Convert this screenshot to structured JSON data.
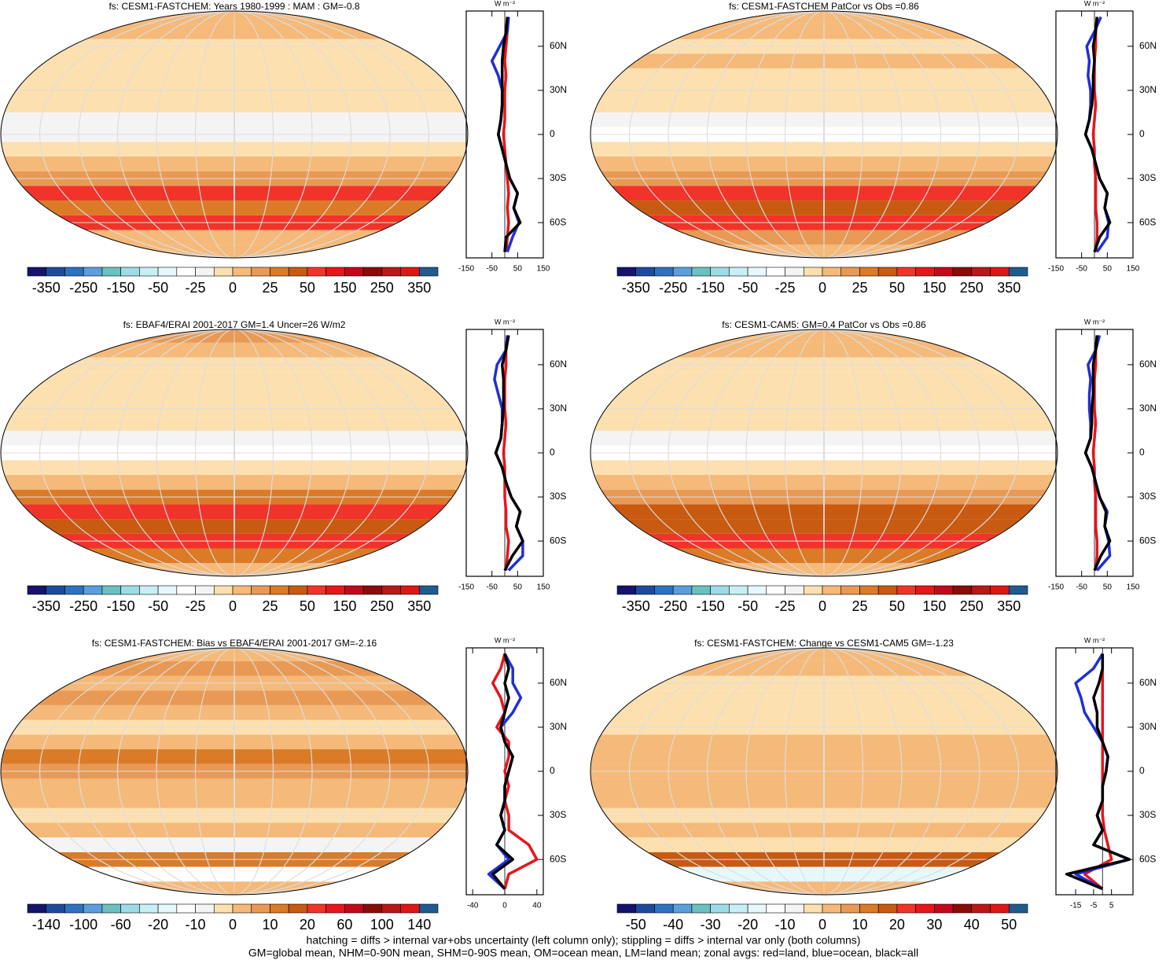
{
  "chart_data": [
    {
      "type": "map",
      "title": "fs: CESM1-FASTCHEM: Years 1980-1999 : MAM : GM=-0.8",
      "colorbar": {
        "colors": [
          "#14146e",
          "#1d4a9a",
          "#2c72c0",
          "#5a9fdc",
          "#6cc0c0",
          "#9edbe6",
          "#c8eff5",
          "#e6f8fb",
          "#ffffff",
          "#f4f4f4",
          "#fde0b0",
          "#f5b979",
          "#e89a55",
          "#db7b28",
          "#c85a12",
          "#f2332a",
          "#e8151b",
          "#c4071a",
          "#8b0a0a",
          "#b81818",
          "#e01616",
          "#1f5b8f"
        ],
        "labels": [
          -350,
          -250,
          -150,
          -50,
          -25,
          0,
          25,
          50,
          150,
          250,
          350
        ]
      },
      "zonal": {
        "type": "line",
        "axis_label": "W m⁻²",
        "y": [
          -80,
          -70,
          -60,
          -50,
          -40,
          -30,
          -20,
          -10,
          0,
          10,
          20,
          30,
          40,
          50,
          60,
          70,
          80
        ],
        "ylim": [
          -84,
          84
        ],
        "yticks": [
          {
            "value": -60,
            "label": "60S"
          },
          {
            "value": -30,
            "label": "30S"
          },
          {
            "value": 0,
            "label": "0"
          },
          {
            "value": 30,
            "label": "30N"
          },
          {
            "value": 60,
            "label": "60N"
          }
        ],
        "xlim": [
          -150,
          150
        ],
        "xticks": [
          -150,
          -50,
          50,
          150
        ],
        "series": [
          {
            "color": "#e8141b",
            "values": [
              5,
              10,
              15,
              10,
              15,
              10,
              5,
              0,
              -5,
              0,
              0,
              0,
              5,
              0,
              5,
              10,
              10
            ]
          },
          {
            "color": "#1f2fd6",
            "values": [
              10,
              30,
              55,
              35,
              50,
              20,
              5,
              -10,
              -25,
              -15,
              -10,
              -10,
              -25,
              -50,
              -20,
              10,
              15
            ]
          },
          {
            "color": "#000000",
            "values": [
              0,
              5,
              60,
              35,
              50,
              20,
              5,
              -10,
              -25,
              -15,
              -10,
              -10,
              -10,
              -10,
              -5,
              5,
              10
            ]
          }
        ]
      }
    },
    {
      "type": "map",
      "title": "fs: CESM1-FASTCHEM PatCor vs Obs =0.86",
      "colorbar": {
        "colors": [
          "#14146e",
          "#1d4a9a",
          "#2c72c0",
          "#5a9fdc",
          "#6cc0c0",
          "#9edbe6",
          "#c8eff5",
          "#e6f8fb",
          "#ffffff",
          "#f4f4f4",
          "#fde0b0",
          "#f5b979",
          "#e89a55",
          "#db7b28",
          "#c85a12",
          "#f2332a",
          "#e8151b",
          "#c4071a",
          "#8b0a0a",
          "#b81818",
          "#e01616",
          "#1f5b8f"
        ],
        "labels": [
          -350,
          -250,
          -150,
          -50,
          -25,
          0,
          25,
          50,
          150,
          250,
          350
        ]
      },
      "zonal": {
        "type": "line",
        "axis_label": "W m⁻²",
        "y": [
          -80,
          -70,
          -60,
          -50,
          -40,
          -30,
          -20,
          -10,
          0,
          10,
          20,
          30,
          40,
          50,
          60,
          70,
          80
        ],
        "ylim": [
          -84,
          84
        ],
        "yticks": [
          {
            "value": -60,
            "label": "60S"
          },
          {
            "value": -30,
            "label": "30S"
          },
          {
            "value": 0,
            "label": "0"
          },
          {
            "value": 30,
            "label": "30N"
          },
          {
            "value": 60,
            "label": "60N"
          }
        ],
        "xlim": [
          -150,
          150
        ],
        "xticks": [
          -150,
          -50,
          50,
          150
        ],
        "series": [
          {
            "color": "#e8141b",
            "values": [
              5,
              10,
              10,
              5,
              5,
              5,
              0,
              0,
              -5,
              0,
              5,
              0,
              0,
              0,
              5,
              5,
              10
            ]
          },
          {
            "color": "#1f2fd6",
            "values": [
              10,
              50,
              55,
              40,
              50,
              20,
              5,
              -10,
              -35,
              -20,
              -15,
              -15,
              -25,
              -20,
              -30,
              0,
              25
            ]
          },
          {
            "color": "#000000",
            "values": [
              0,
              20,
              60,
              40,
              50,
              20,
              5,
              -10,
              -35,
              -20,
              -10,
              -5,
              -5,
              0,
              -5,
              5,
              10
            ]
          }
        ]
      }
    },
    {
      "type": "map",
      "title": "fs: EBAF4/ERAI 2001-2017 GM=1.4 Uncer=26 W/m2",
      "colorbar": {
        "colors": [
          "#14146e",
          "#1d4a9a",
          "#2c72c0",
          "#5a9fdc",
          "#6cc0c0",
          "#9edbe6",
          "#c8eff5",
          "#e6f8fb",
          "#ffffff",
          "#f4f4f4",
          "#fde0b0",
          "#f5b979",
          "#e89a55",
          "#db7b28",
          "#c85a12",
          "#f2332a",
          "#e8151b",
          "#c4071a",
          "#8b0a0a",
          "#b81818",
          "#e01616",
          "#1f5b8f"
        ],
        "labels": [
          -350,
          -250,
          -150,
          -50,
          -25,
          0,
          25,
          50,
          150,
          250,
          350
        ]
      },
      "zonal": {
        "type": "line",
        "axis_label": "W m⁻²",
        "y": [
          -80,
          -70,
          -60,
          -50,
          -40,
          -30,
          -20,
          -10,
          0,
          10,
          20,
          30,
          40,
          50,
          60,
          70,
          80
        ],
        "ylim": [
          -84,
          84
        ],
        "yticks": [
          {
            "value": -60,
            "label": "60S"
          },
          {
            "value": -30,
            "label": "30S"
          },
          {
            "value": 0,
            "label": "0"
          },
          {
            "value": 30,
            "label": "30N"
          },
          {
            "value": 60,
            "label": "60N"
          }
        ],
        "xlim": [
          -150,
          150
        ],
        "xticks": [
          -150,
          -50,
          50,
          150
        ],
        "series": [
          {
            "color": "#e8141b",
            "values": [
              5,
              10,
              15,
              5,
              5,
              0,
              0,
              0,
              -5,
              0,
              5,
              0,
              0,
              0,
              5,
              5,
              10
            ]
          },
          {
            "color": "#1f2fd6",
            "values": [
              15,
              70,
              70,
              45,
              60,
              25,
              5,
              -10,
              -35,
              -15,
              -10,
              -10,
              -25,
              -40,
              -30,
              5,
              10
            ]
          },
          {
            "color": "#000000",
            "values": [
              0,
              30,
              70,
              45,
              60,
              25,
              5,
              -10,
              -35,
              -15,
              -10,
              -5,
              -5,
              -5,
              -10,
              5,
              15
            ]
          }
        ]
      }
    },
    {
      "type": "map",
      "title": "fs: CESM1-CAM5: GM=0.4 PatCor vs Obs =0.86",
      "colorbar": {
        "colors": [
          "#14146e",
          "#1d4a9a",
          "#2c72c0",
          "#5a9fdc",
          "#6cc0c0",
          "#9edbe6",
          "#c8eff5",
          "#e6f8fb",
          "#ffffff",
          "#f4f4f4",
          "#fde0b0",
          "#f5b979",
          "#e89a55",
          "#db7b28",
          "#c85a12",
          "#f2332a",
          "#e8151b",
          "#c4071a",
          "#8b0a0a",
          "#b81818",
          "#e01616",
          "#1f5b8f"
        ],
        "labels": [
          -350,
          -250,
          -150,
          -50,
          -25,
          0,
          25,
          50,
          150,
          250,
          350
        ]
      },
      "zonal": {
        "type": "line",
        "axis_label": "W m⁻²",
        "y": [
          -80,
          -70,
          -60,
          -50,
          -40,
          -30,
          -20,
          -10,
          0,
          10,
          20,
          30,
          40,
          50,
          60,
          70,
          80
        ],
        "ylim": [
          -84,
          84
        ],
        "yticks": [
          {
            "value": -60,
            "label": "60S"
          },
          {
            "value": -30,
            "label": "30S"
          },
          {
            "value": 0,
            "label": "0"
          },
          {
            "value": 30,
            "label": "30N"
          },
          {
            "value": 60,
            "label": "60N"
          }
        ],
        "xlim": [
          -150,
          150
        ],
        "xticks": [
          -150,
          -50,
          50,
          150
        ],
        "series": [
          {
            "color": "#e8141b",
            "values": [
              5,
              10,
              10,
              5,
              5,
              5,
              0,
              0,
              -5,
              0,
              5,
              0,
              0,
              0,
              5,
              5,
              10
            ]
          },
          {
            "color": "#1f2fd6",
            "values": [
              10,
              60,
              55,
              40,
              50,
              20,
              5,
              -10,
              -35,
              -15,
              -15,
              -20,
              -20,
              -15,
              -25,
              5,
              20
            ]
          },
          {
            "color": "#000000",
            "values": [
              0,
              25,
              60,
              40,
              45,
              20,
              5,
              -10,
              -35,
              -15,
              -10,
              -10,
              -5,
              -5,
              -5,
              5,
              10
            ]
          }
        ]
      }
    },
    {
      "type": "map",
      "title": "fs: CESM1-FASTCHEM: Bias vs EBAF4/ERAI 2001-2017 GM=-2.16",
      "colorbar": {
        "colors": [
          "#14146e",
          "#1d4a9a",
          "#2c72c0",
          "#5a9fdc",
          "#6cc0c0",
          "#9edbe6",
          "#c8eff5",
          "#e6f8fb",
          "#ffffff",
          "#f4f4f4",
          "#fde0b0",
          "#f5b979",
          "#e89a55",
          "#db7b28",
          "#c85a12",
          "#f2332a",
          "#e8151b",
          "#c4071a",
          "#8b0a0a",
          "#b81818",
          "#e01616",
          "#1f5b8f"
        ],
        "labels": [
          -140,
          -100,
          -60,
          -20,
          -10,
          0,
          10,
          20,
          60,
          100,
          140
        ]
      },
      "zonal": {
        "type": "line",
        "axis_label": "W m⁻²",
        "y": [
          -80,
          -70,
          -60,
          -50,
          -40,
          -30,
          -20,
          -10,
          0,
          10,
          20,
          30,
          40,
          50,
          60,
          70,
          80
        ],
        "ylim": [
          -84,
          84
        ],
        "yticks": [
          {
            "value": -60,
            "label": "60S"
          },
          {
            "value": -30,
            "label": "30S"
          },
          {
            "value": 0,
            "label": "0"
          },
          {
            "value": 30,
            "label": "30N"
          },
          {
            "value": 60,
            "label": "60N"
          }
        ],
        "xlim": [
          -48,
          48
        ],
        "xticks": [
          -40,
          0,
          40
        ],
        "series": [
          {
            "color": "#e8141b",
            "values": [
              0,
              5,
              40,
              30,
              5,
              5,
              0,
              5,
              0,
              5,
              5,
              -10,
              0,
              -5,
              -15,
              -5,
              0
            ]
          },
          {
            "color": "#1f2fd6",
            "values": [
              0,
              -20,
              5,
              -10,
              0,
              -5,
              0,
              0,
              5,
              10,
              0,
              -5,
              10,
              20,
              10,
              10,
              0
            ]
          },
          {
            "color": "#000000",
            "values": [
              0,
              -15,
              10,
              -10,
              0,
              -5,
              0,
              0,
              5,
              10,
              0,
              -5,
              0,
              5,
              0,
              5,
              0
            ]
          }
        ]
      }
    },
    {
      "type": "map",
      "title": "fs: CESM1-FASTCHEM: Change vs CESM1-CAM5 GM=-1.23",
      "colorbar": {
        "colors": [
          "#14146e",
          "#1d4a9a",
          "#2c72c0",
          "#5a9fdc",
          "#6cc0c0",
          "#9edbe6",
          "#c8eff5",
          "#e6f8fb",
          "#ffffff",
          "#f4f4f4",
          "#fde0b0",
          "#f5b979",
          "#e89a55",
          "#db7b28",
          "#c85a12",
          "#f2332a",
          "#e8151b",
          "#c4071a",
          "#8b0a0a",
          "#b81818",
          "#e01616",
          "#1f5b8f"
        ],
        "labels": [
          -50,
          -40,
          -30,
          -20,
          -10,
          0,
          10,
          20,
          30,
          40,
          50
        ]
      },
      "zonal": {
        "type": "line",
        "axis_label": "W m⁻²",
        "y": [
          -80,
          -70,
          -60,
          -50,
          -40,
          -30,
          -20,
          -10,
          0,
          10,
          20,
          30,
          40,
          50,
          60,
          70,
          80
        ],
        "ylim": [
          -84,
          84
        ],
        "yticks": [
          {
            "value": -60,
            "label": "60S"
          },
          {
            "value": -30,
            "label": "30S"
          },
          {
            "value": 0,
            "label": "0"
          },
          {
            "value": 30,
            "label": "30N"
          },
          {
            "value": 60,
            "label": "60N"
          }
        ],
        "xlim": [
          -26,
          17
        ],
        "xticks": [
          -15,
          -5,
          5
        ],
        "series": [
          {
            "color": "#e8141b",
            "values": [
              0,
              -10,
              5,
              3,
              1,
              0,
              0,
              0,
              0,
              0,
              0,
              0,
              0,
              0,
              0,
              0,
              0
            ]
          },
          {
            "color": "#1f2fd6",
            "values": [
              0,
              -15,
              15,
              -5,
              0,
              -3,
              0,
              0,
              2,
              3,
              0,
              -5,
              -10,
              -12,
              -15,
              -5,
              0
            ]
          },
          {
            "color": "#000000",
            "values": [
              0,
              -20,
              15,
              -5,
              0,
              -3,
              0,
              0,
              2,
              3,
              0,
              -3,
              -3,
              -5,
              -2,
              0,
              0
            ]
          }
        ]
      }
    }
  ],
  "notes": [
    "hatching = diffs > internal var+obs uncertainty (left column only); stippling = diffs > internal var only (both columns)",
    "GM=global mean, NHM=0-90N mean, SHM=0-90S mean, OM=ocean mean, LM=land mean; zonal avgs: red=land, blue=ocean, black=all"
  ]
}
